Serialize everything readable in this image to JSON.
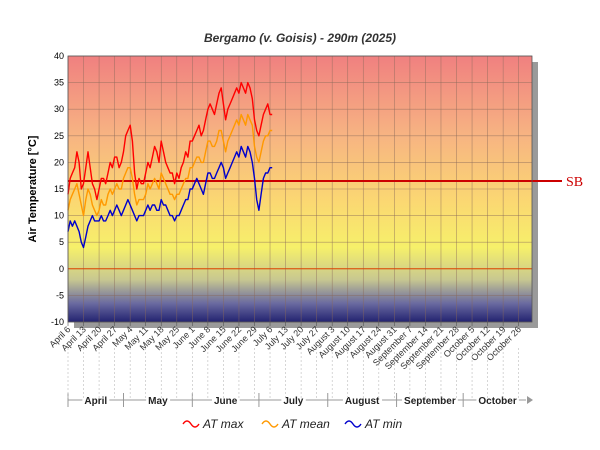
{
  "chart_data": {
    "type": "line",
    "title": "Bergamo (v. Goisis) - 290m (2025)",
    "ylabel": "Air Temperature [°C]",
    "ylim": [
      -10,
      40
    ],
    "yticks": [
      -10,
      -5,
      0,
      5,
      10,
      15,
      20,
      25,
      30,
      35,
      40
    ],
    "x_start": "April 6",
    "x_end": "October 31",
    "xtick_labels": [
      "April 6",
      "April 13",
      "April 20",
      "April 27",
      "May 4",
      "May 11",
      "May 18",
      "May 25",
      "June 1",
      "June 8",
      "June 15",
      "June 22",
      "June 29",
      "July 6",
      "July 13",
      "July 20",
      "July 27",
      "August 3",
      "August 10",
      "August 17",
      "August 24",
      "August 31",
      "September 7",
      "September 14",
      "September 21",
      "September 28",
      "October 5",
      "October 12",
      "October 19",
      "October 26"
    ],
    "months": [
      {
        "label": "April",
        "start_day": 0,
        "end_day": 25
      },
      {
        "label": "May",
        "start_day": 25,
        "end_day": 56
      },
      {
        "label": "June",
        "start_day": 56,
        "end_day": 86
      },
      {
        "label": "July",
        "start_day": 86,
        "end_day": 117
      },
      {
        "label": "August",
        "start_day": 117,
        "end_day": 148
      },
      {
        "label": "September",
        "start_day": 148,
        "end_day": 178
      },
      {
        "label": "October",
        "start_day": 178,
        "end_day": 209
      }
    ],
    "reference_lines": [
      {
        "name": "SB",
        "value": 16.5,
        "color": "#cc0000"
      },
      {
        "value": 0,
        "color": "#dd4400"
      }
    ],
    "series": [
      {
        "name": "AT max",
        "color": "#ff0000",
        "values": [
          14,
          17,
          18,
          19,
          22,
          20,
          15,
          16,
          19,
          22,
          19,
          16,
          15,
          13,
          15,
          17,
          17,
          16,
          18,
          20,
          19,
          21,
          21,
          19,
          20,
          22,
          25,
          26,
          27,
          24,
          18,
          15,
          17,
          16,
          16,
          18,
          20,
          19,
          21,
          23,
          22,
          20,
          24,
          22,
          20,
          19,
          18,
          18,
          16,
          18,
          17,
          19,
          20,
          22,
          21,
          24,
          24,
          25,
          26,
          27,
          25,
          26,
          28,
          30,
          31,
          30,
          29,
          31,
          33,
          34,
          31,
          28,
          30,
          31,
          32,
          33,
          34,
          33,
          35,
          34,
          33,
          35,
          34,
          32,
          28,
          26,
          25,
          27,
          29,
          30,
          31,
          29,
          29
        ]
      },
      {
        "name": "AT mean",
        "color": "#ff9900",
        "values": [
          11,
          13,
          14,
          15,
          16,
          14,
          12,
          10,
          13,
          15,
          14,
          12,
          11,
          10,
          11,
          13,
          12,
          12,
          14,
          15,
          14,
          15,
          16,
          15,
          15,
          17,
          18,
          19,
          19,
          17,
          14,
          12,
          13,
          13,
          13,
          14,
          16,
          15,
          16,
          17,
          16,
          15,
          18,
          17,
          16,
          15,
          14,
          14,
          13,
          14,
          14,
          15,
          16,
          17,
          17,
          19,
          19,
          20,
          21,
          21,
          20,
          20,
          22,
          24,
          24,
          23,
          23,
          24,
          26,
          26,
          24,
          22,
          24,
          25,
          26,
          27,
          28,
          27,
          29,
          28,
          27,
          29,
          28,
          27,
          23,
          21,
          20,
          22,
          24,
          25,
          25,
          26,
          26
        ]
      },
      {
        "name": "AT min",
        "color": "#0000cc",
        "values": [
          7,
          9,
          8,
          9,
          8,
          7,
          5,
          4,
          6,
          8,
          9,
          10,
          9,
          9,
          9,
          10,
          9,
          9,
          10,
          11,
          10,
          11,
          12,
          11,
          10,
          11,
          12,
          13,
          12,
          11,
          10,
          9,
          10,
          10,
          10,
          11,
          12,
          11,
          12,
          12,
          11,
          11,
          13,
          12,
          12,
          11,
          10,
          10,
          9,
          10,
          10,
          11,
          12,
          13,
          13,
          15,
          15,
          16,
          17,
          16,
          15,
          14,
          16,
          18,
          18,
          17,
          17,
          18,
          19,
          20,
          19,
          17,
          18,
          19,
          20,
          21,
          22,
          21,
          23,
          22,
          21,
          23,
          22,
          20,
          17,
          13,
          11,
          14,
          17,
          18,
          18,
          19,
          19
        ]
      }
    ]
  }
}
